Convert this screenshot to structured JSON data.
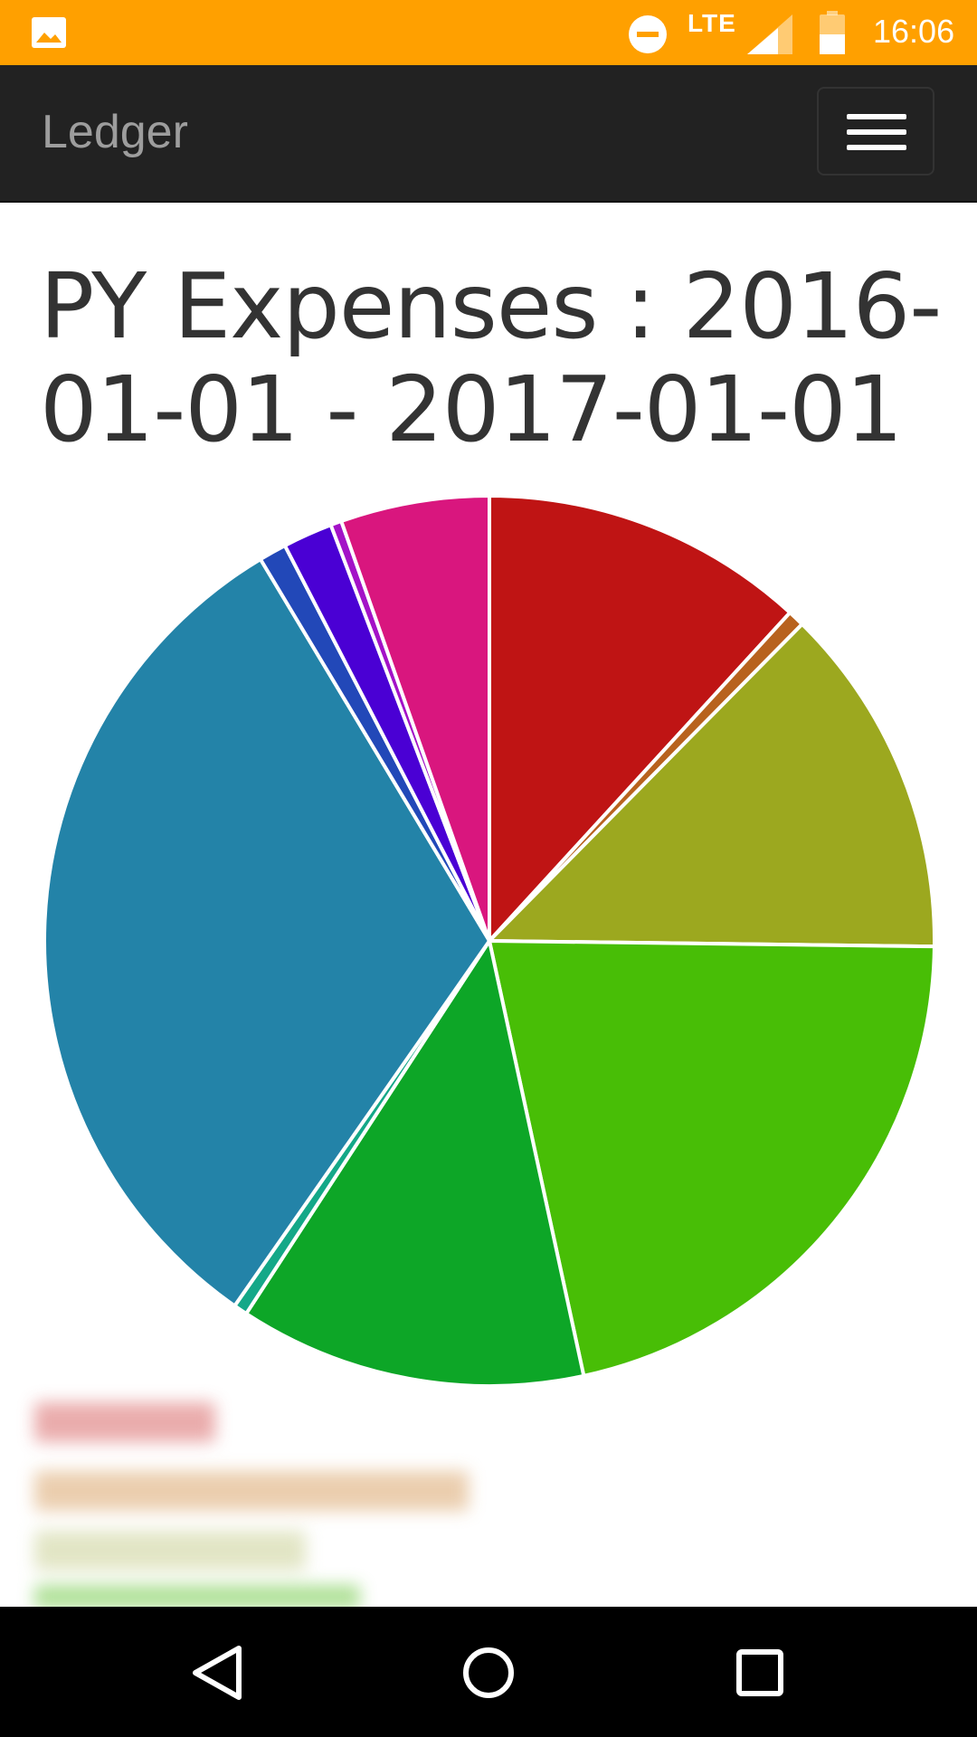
{
  "status_bar": {
    "background": "#FFA000",
    "network_label": "LTE",
    "time": "16:06",
    "icons": [
      "gallery-icon",
      "do-not-disturb-icon",
      "signal-icon",
      "battery-icon"
    ]
  },
  "navbar": {
    "brand": "Ledger",
    "background": "#222222",
    "menu_icon": "hamburger-menu-icon"
  },
  "page": {
    "title": "PY Expenses : 2016-01-01 - 2017-01-01"
  },
  "chart_data": {
    "type": "pie",
    "title": "",
    "start_angle_deg": 0,
    "direction": "clockwise",
    "legend_placement": "bottom-left",
    "slices": [
      {
        "value": 11.8,
        "color": "#BF1414"
      },
      {
        "value": 0.6,
        "color": "#B8621E"
      },
      {
        "value": 12.8,
        "color": "#9CA81F"
      },
      {
        "value": 21.4,
        "color": "#48BE06"
      },
      {
        "value": 12.6,
        "color": "#0DA627"
      },
      {
        "value": 0.5,
        "color": "#14A888"
      },
      {
        "value": 31.7,
        "color": "#2383A8"
      },
      {
        "value": 1.0,
        "color": "#2248B8"
      },
      {
        "value": 1.8,
        "color": "#4A00D4"
      },
      {
        "value": 0.4,
        "color": "#A312C7"
      },
      {
        "value": 5.4,
        "color": "#D9167E"
      }
    ]
  },
  "android_nav": {
    "background": "#000000",
    "buttons": [
      "back-icon",
      "home-icon",
      "recents-icon"
    ]
  }
}
